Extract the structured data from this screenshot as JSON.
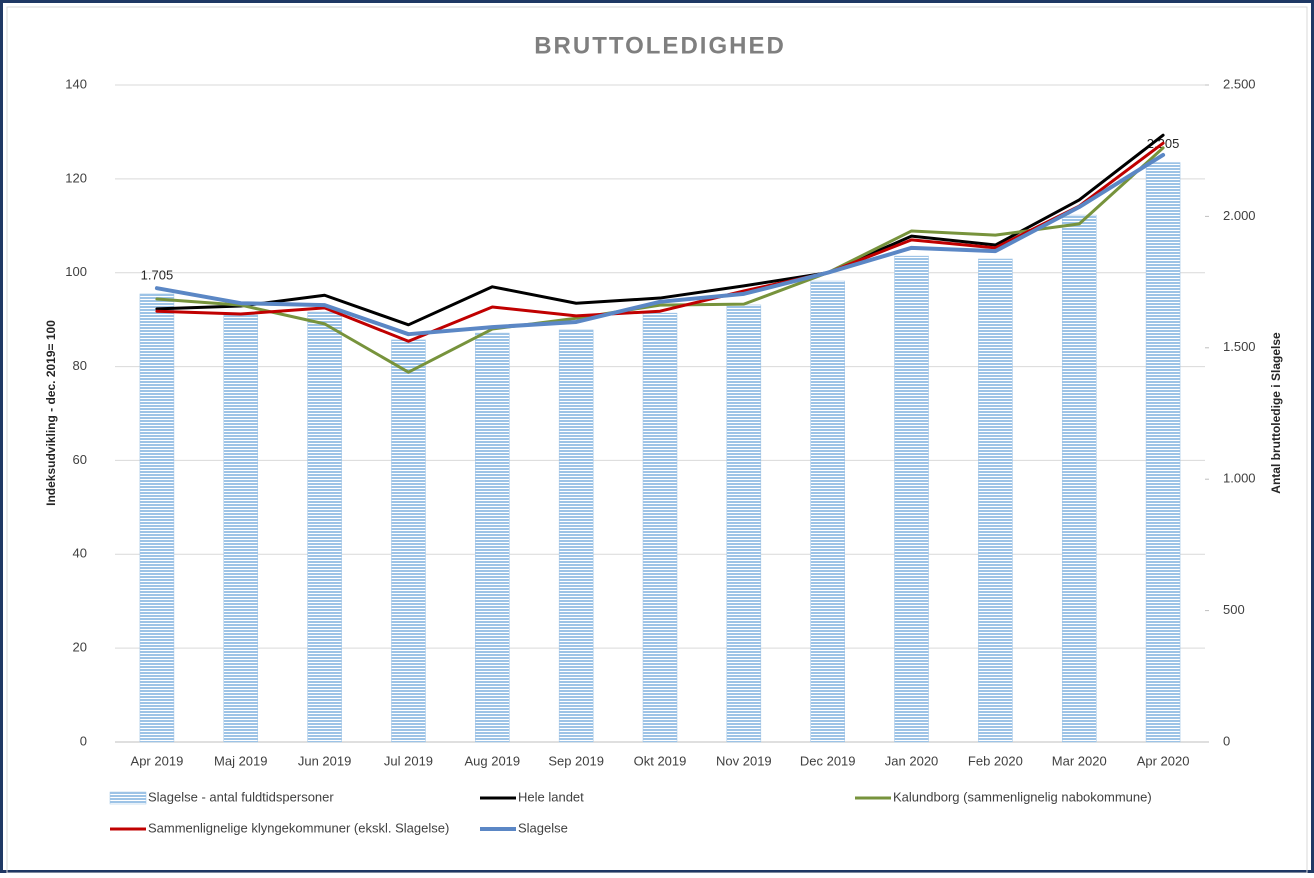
{
  "chart_data": {
    "type": "combo",
    "title": "BRUTTOLEDIGHED",
    "y_label": "Indeksudvikling - dec. 2019= 100",
    "y2_label": "Antal bruttoledige  i Slagelse",
    "categories": [
      "Apr 2019",
      "Maj 2019",
      "Jun 2019",
      "Jul 2019",
      "Aug 2019",
      "Sep 2019",
      "Okt 2019",
      "Nov 2019",
      "Dec 2019",
      "Jan 2020",
      "Feb 2020",
      "Mar 2020",
      "Apr 2020"
    ],
    "ylim": [
      0,
      140
    ],
    "yticks": [
      0,
      20,
      40,
      60,
      80,
      100,
      120,
      140
    ],
    "y2lim": [
      0,
      2500
    ],
    "y2ticks": [
      0,
      500,
      {
        "value": 1000,
        "label": "1.000"
      },
      {
        "value": 1500,
        "label": "1.500"
      },
      {
        "value": 2000,
        "label": "2.000"
      },
      {
        "value": 2500,
        "label": "2.500"
      }
    ],
    "grid": true,
    "series": [
      {
        "name": "Slagelse - antal fuldtidspersoner",
        "type": "bar",
        "axis": "y2",
        "color": "#9dc3e6",
        "values": [
          1705,
          1625,
          1636,
          1530,
          1556,
          1568,
          1632,
          1663,
          1754,
          1849,
          1838,
          2005,
          2205
        ],
        "value_labels": [
          "1.705",
          null,
          null,
          null,
          null,
          null,
          null,
          null,
          null,
          null,
          null,
          null,
          "2.205"
        ]
      },
      {
        "name": "Hele landet",
        "type": "line",
        "color": "#000000",
        "values": [
          92.3,
          92.9,
          95.2,
          88.9,
          97.0,
          93.5,
          94.6,
          97.2,
          100,
          107.8,
          105.9,
          115.5,
          129.3
        ]
      },
      {
        "name": "Kalundborg (sammenlignelig nabokommune)",
        "type": "line",
        "color": "#77933c",
        "values": [
          94.4,
          93.1,
          89.1,
          78.8,
          88.0,
          90.3,
          93.1,
          93.3,
          100,
          108.9,
          108.0,
          110.4,
          126.6
        ]
      },
      {
        "name": "Sammenlignelige klyngekommuner (ekskl. Slagelse)",
        "type": "line",
        "color": "#c00000",
        "values": [
          91.8,
          91.2,
          92.5,
          85.4,
          92.7,
          90.8,
          91.8,
          96.1,
          100,
          107.0,
          105.3,
          114.2,
          127.6
        ]
      },
      {
        "name": "Slagelse",
        "type": "line",
        "color": "#5b87c5",
        "values": [
          96.7,
          93.5,
          93.1,
          86.9,
          88.4,
          89.5,
          93.8,
          95.5,
          100,
          105.3,
          104.6,
          114.0,
          125.1
        ]
      }
    ]
  }
}
